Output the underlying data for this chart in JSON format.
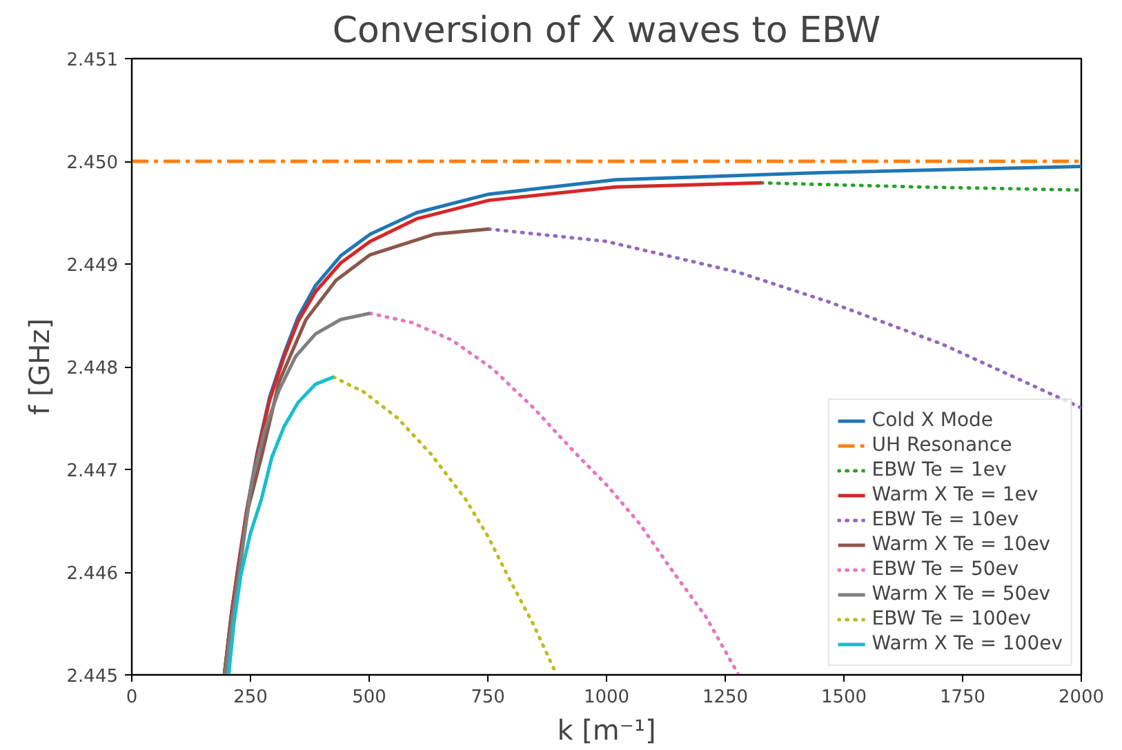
{
  "chart_data": {
    "type": "line",
    "title": "Conversion of X waves to EBW",
    "xlabel": "k [m⁻¹]",
    "ylabel": "f [GHz]",
    "xlim": [
      0,
      2000
    ],
    "xticks": [
      0,
      250,
      500,
      750,
      1000,
      1250,
      1500,
      1750,
      2000
    ],
    "ylim": [
      2.445,
      2.451
    ],
    "yticks": [
      2.445,
      2.446,
      2.447,
      2.448,
      2.449,
      {
        "value": 2.45,
        "label": "2.450"
      },
      2.451
    ],
    "grid": false,
    "legend": "bottom right",
    "marker": "none",
    "series": [
      {
        "name": "Cold X Mode",
        "color": "#1f77b4",
        "line_style": "solid",
        "x": [
          195,
          210,
          224,
          242,
          264,
          290,
          321,
          350,
          387,
          440,
          502,
          600,
          752,
          1019,
          1449,
          2000
        ],
        "values": [
          2.445,
          2.4456,
          2.44605,
          2.4466,
          2.44716,
          2.4477,
          2.44813,
          2.44848,
          2.44879,
          2.44908,
          2.44929,
          2.4495,
          2.44968,
          2.44982,
          2.44989,
          2.44995
        ]
      },
      {
        "name": "UH Resonance",
        "color": "#ff7f0e",
        "line_style": "dashdot",
        "x": [
          0,
          2000
        ],
        "values": [
          2.45,
          2.45
        ]
      },
      {
        "name": "EBW Te = 1ev",
        "color": "#2ca02c",
        "line_style": "dotted",
        "x": [
          1326,
          1659,
          2000
        ],
        "values": [
          2.44979,
          2.44975,
          2.44972
        ]
      },
      {
        "name": "Warm X Te = 1ev",
        "color": "#d62728",
        "line_style": "solid",
        "x": [
          195,
          210,
          224,
          242,
          264,
          290,
          321,
          350,
          387,
          440,
          502,
          600,
          752,
          1019,
          1326
        ],
        "values": [
          2.445,
          2.4456,
          2.44605,
          2.44659,
          2.44714,
          2.44767,
          2.4481,
          2.44844,
          2.44873,
          2.44901,
          2.44922,
          2.44944,
          2.44962,
          2.44975,
          2.44979
        ]
      },
      {
        "name": "EBW Te = 10ev",
        "color": "#9467bd",
        "line_style": "dotted",
        "x": [
          752,
          1000,
          1277,
          1469,
          1707,
          2000
        ],
        "values": [
          2.44934,
          2.44922,
          2.44892,
          2.44863,
          2.44822,
          2.4476
        ]
      },
      {
        "name": "Warm X Te = 10ev",
        "color": "#8c564b",
        "line_style": "solid",
        "x": [
          195,
          210,
          224,
          245,
          273,
          310,
          367,
          430,
          502,
          637,
          752
        ],
        "values": [
          2.445,
          2.44558,
          2.44603,
          2.44662,
          2.44712,
          2.44785,
          2.44846,
          2.44884,
          2.44909,
          2.44929,
          2.44934
        ]
      },
      {
        "name": "EBW Te = 50ev",
        "color": "#e377c2",
        "line_style": "dotted",
        "x": [
          502,
          590,
          674,
          760,
          846,
          930,
          1000,
          1070,
          1133,
          1210,
          1277
        ],
        "values": [
          2.44852,
          2.44843,
          2.44826,
          2.44798,
          2.4476,
          2.44718,
          2.44685,
          2.44647,
          2.44605,
          2.44556,
          2.44501
        ]
      },
      {
        "name": "Warm X Te = 50ev",
        "color": "#7f7f7f",
        "line_style": "solid",
        "x": [
          197,
          210,
          225,
          253,
          280,
          310,
          345,
          387,
          440,
          502
        ],
        "values": [
          2.445,
          2.44548,
          2.44595,
          2.44689,
          2.44738,
          2.44777,
          2.4481,
          2.44832,
          2.44846,
          2.44852
        ]
      },
      {
        "name": "EBW Te = 100ev",
        "color": "#bcbd22",
        "line_style": "dotted",
        "x": [
          425,
          490,
          560,
          630,
          703,
          750,
          798,
          845,
          890
        ],
        "values": [
          2.4479,
          2.44775,
          2.4475,
          2.44715,
          2.44671,
          2.44635,
          2.44591,
          2.4455,
          2.44505
        ]
      },
      {
        "name": "Warm X Te = 100ev",
        "color": "#17becf",
        "line_style": "solid",
        "x": [
          204,
          215,
          230,
          250,
          273,
          295,
          321,
          350,
          387,
          425
        ],
        "values": [
          2.445,
          2.4455,
          2.44598,
          2.44638,
          2.44671,
          2.44712,
          2.44742,
          2.44765,
          2.44783,
          2.4479
        ]
      }
    ]
  }
}
